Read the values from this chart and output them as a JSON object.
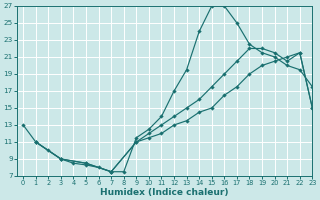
{
  "bg_color": "#cce8e8",
  "grid_color": "#ffffff",
  "line_color": "#1a7070",
  "xlabel": "Humidex (Indice chaleur)",
  "xlim": [
    -0.5,
    23
  ],
  "ylim": [
    7,
    27
  ],
  "xticks": [
    0,
    1,
    2,
    3,
    4,
    5,
    6,
    7,
    8,
    9,
    10,
    11,
    12,
    13,
    14,
    15,
    16,
    17,
    18,
    19,
    20,
    21,
    22,
    23
  ],
  "yticks": [
    7,
    9,
    11,
    13,
    15,
    17,
    19,
    21,
    23,
    25,
    27
  ],
  "line1_x": [
    0,
    1,
    2,
    3,
    4,
    5,
    6,
    7,
    8,
    9,
    10,
    11,
    12,
    13,
    14,
    15,
    16,
    17,
    18,
    19,
    20,
    21,
    22,
    23
  ],
  "line1_y": [
    13,
    11,
    10,
    9,
    8.5,
    8.3,
    8.0,
    7.5,
    7.5,
    11.5,
    12.5,
    14,
    17,
    19.5,
    24,
    27,
    27,
    25,
    22.5,
    21.5,
    21.0,
    20.0,
    19.5,
    17.5
  ],
  "line2_x": [
    1,
    3,
    5,
    7,
    9,
    10,
    11,
    12,
    13,
    14,
    15,
    16,
    17,
    18,
    19,
    20,
    21,
    22,
    23
  ],
  "line2_y": [
    11,
    9,
    8.5,
    7.5,
    11,
    12,
    13,
    14,
    15,
    16,
    17.5,
    19,
    20.5,
    22,
    22,
    21.5,
    20.5,
    21.5,
    15.0
  ],
  "line3_x": [
    1,
    3,
    5,
    7,
    9,
    10,
    11,
    12,
    13,
    14,
    15,
    16,
    17,
    18,
    19,
    20,
    21,
    22,
    23
  ],
  "line3_y": [
    11,
    9,
    8.5,
    7.5,
    11,
    11.5,
    12,
    13,
    13.5,
    14.5,
    15,
    16.5,
    17.5,
    19,
    20,
    20.5,
    21,
    21.5,
    15
  ]
}
